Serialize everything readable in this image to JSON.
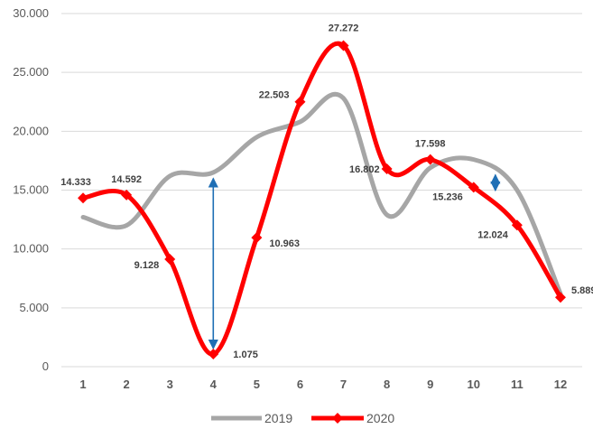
{
  "chart_data": {
    "type": "line",
    "x": [
      1,
      2,
      3,
      4,
      5,
      6,
      7,
      8,
      9,
      10,
      11,
      12
    ],
    "ylim": [
      0,
      30000
    ],
    "yticks": [
      0,
      5000,
      10000,
      15000,
      20000,
      25000,
      30000
    ],
    "ytick_labels": [
      "0",
      "5.000",
      "10.000",
      "15.000",
      "20.000",
      "25.000",
      "30.000"
    ],
    "grid": true,
    "legend": "bottom",
    "series": [
      {
        "name": "2019",
        "color": "#a6a6a6",
        "values": [
          12700,
          12000,
          16200,
          16500,
          19500,
          20800,
          22800,
          12900,
          16900,
          17600,
          15000,
          6200
        ]
      },
      {
        "name": "2020",
        "color": "#ff0000",
        "marker": "diamond",
        "values": [
          14333,
          14592,
          9128,
          1075,
          10963,
          22503,
          27272,
          16802,
          17598,
          15236,
          12024,
          5889
        ],
        "data_labels": [
          "14.333",
          "14.592",
          "9.128",
          "1.075",
          "10.963",
          "22.503",
          "27.272",
          "16.802",
          "17.598",
          "15.236",
          "12.024",
          "5.889"
        ]
      }
    ],
    "annotations": [
      {
        "type": "double-arrow",
        "x": 4,
        "from": 1075,
        "to": 16000,
        "color": "#1f6fb5"
      },
      {
        "type": "double-arrow",
        "x": 10.5,
        "from": 14500,
        "to": 16300,
        "color": "#1f6fb5"
      }
    ]
  }
}
